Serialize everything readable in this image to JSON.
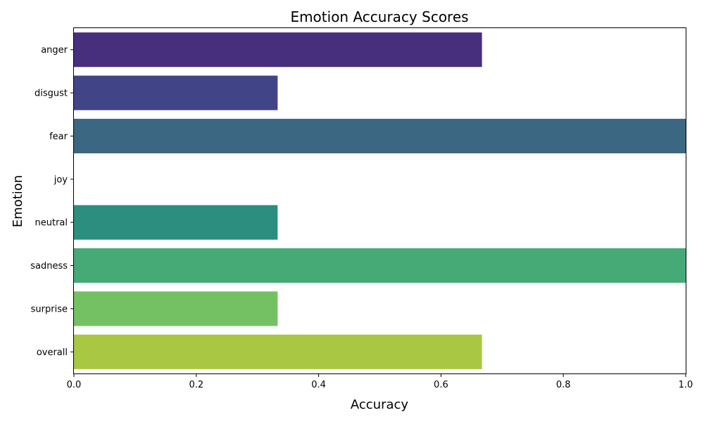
{
  "chart_data": {
    "type": "bar",
    "orientation": "horizontal",
    "title": "Emotion Accuracy Scores",
    "xlabel": "Accuracy",
    "ylabel": "Emotion",
    "xlim": [
      0,
      1
    ],
    "x_ticks": [
      0.0,
      0.2,
      0.4,
      0.6,
      0.8,
      1.0
    ],
    "x_tick_labels": [
      "0.0",
      "0.2",
      "0.4",
      "0.6",
      "0.8",
      "1.0"
    ],
    "categories": [
      "anger",
      "disgust",
      "fear",
      "joy",
      "neutral",
      "sadness",
      "surprise",
      "overall"
    ],
    "values": [
      0.667,
      0.333,
      1.0,
      0.0,
      0.333,
      1.0,
      0.333,
      0.667
    ],
    "colors": [
      "#472f7d",
      "#414487",
      "#3c6783",
      "#3b528b",
      "#2c8e7e",
      "#46aa76",
      "#74c164",
      "#a8c843"
    ],
    "grid": false,
    "legend": "none"
  }
}
